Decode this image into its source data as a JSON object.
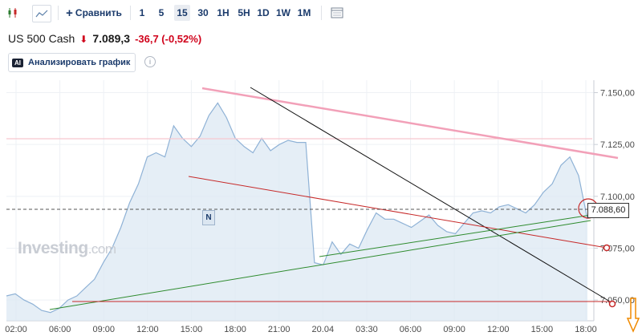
{
  "toolbar": {
    "compare_label": "Сравнить",
    "timeframes": [
      "1",
      "5",
      "15",
      "30",
      "1H",
      "5H",
      "1D",
      "1W",
      "1M"
    ],
    "active_timeframe": "15",
    "icons": [
      "candlestick-icon",
      "area-chart-icon",
      "plus-icon",
      "table-icon"
    ]
  },
  "instrument": {
    "name": "US 500 Cash",
    "price": "7.089,3",
    "change": "-36,7 (-0,52%)",
    "direction_icon": "arrow-down-icon",
    "change_color": "#d0021b"
  },
  "ai_button": {
    "badge": "AI",
    "label": "Анализировать график"
  },
  "watermark": {
    "brand": "Investing",
    "suffix": ".com"
  },
  "current_price_label": "7.088,60",
  "news_marker": "N",
  "chart_data": {
    "type": "area",
    "series": [
      {
        "values": [
          7052,
          7053,
          7050,
          7048,
          7045,
          7044,
          7046,
          7050,
          7052,
          7056,
          7060,
          7068,
          7075,
          7085,
          7097,
          7106,
          7119,
          7121,
          7119,
          7134,
          7128,
          7124,
          7129,
          7139,
          7145,
          7138,
          7128,
          7124,
          7121,
          7128,
          7122,
          7125,
          7127,
          7126,
          7126,
          7068,
          7067,
          7078,
          7072,
          7077,
          7075,
          7084,
          7092,
          7089,
          7089,
          7087,
          7085,
          7088,
          7091,
          7086,
          7083,
          7082,
          7087,
          7092,
          7093,
          7092,
          7095,
          7096,
          7094,
          7092,
          7096,
          7102,
          7106,
          7115,
          7119,
          7110,
          7089
        ]
      }
    ],
    "x_tick_labels": [
      "02:00",
      "06:00",
      "09:00",
      "12:00",
      "15:00",
      "18:00",
      "21:00",
      "20.04",
      "03:30",
      "06:00",
      "09:00",
      "12:00",
      "15:00",
      "18:00"
    ],
    "y_tick_labels": [
      "7.050,00",
      "7.075,00",
      "7.100,00",
      "7.125,00",
      "7.150,00"
    ],
    "ylim": [
      7040,
      7156
    ],
    "grid": true,
    "colors": {
      "line": "#8fb2d6",
      "fill": "#dce8f3"
    }
  }
}
